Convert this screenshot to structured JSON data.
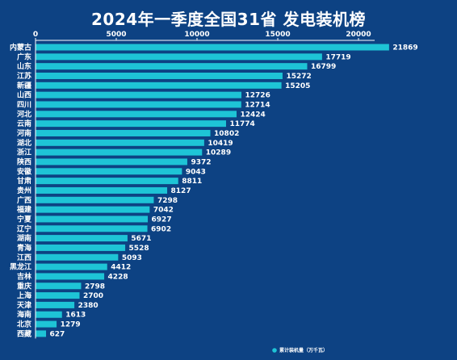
{
  "title": "2024年一季度全国31省 发电装机榜",
  "colors": {
    "background": "#0d4283",
    "bar": "#1ec4d6",
    "text": "#ffffff"
  },
  "legend": {
    "label": "累计装机量（万千瓦）",
    "position": "bottom-right"
  },
  "chart_data": {
    "type": "bar",
    "orientation": "horizontal",
    "title": "2024年一季度全国31省 发电装机榜",
    "xlabel": "",
    "ylabel": "",
    "xlim": [
      0,
      22000
    ],
    "xticks": [
      0,
      5000,
      10000,
      15000,
      20000
    ],
    "xtick_labels": [
      "0",
      "5000",
      "10000",
      "15000",
      "20000"
    ],
    "grid": false,
    "categories": [
      "内蒙古",
      "广东",
      "山东",
      "江苏",
      "新疆",
      "山西",
      "四川",
      "河北",
      "云南",
      "河南",
      "湖北",
      "浙江",
      "陕西",
      "安徽",
      "甘肃",
      "贵州",
      "广西",
      "福建",
      "宁夏",
      "辽宁",
      "湖南",
      "青海",
      "江西",
      "黑龙江",
      "吉林",
      "重庆",
      "上海",
      "天津",
      "海南",
      "北京",
      "西藏"
    ],
    "series": [
      {
        "name": "累计装机量（万千瓦）",
        "values": [
          21869,
          17719,
          16799,
          15272,
          15205,
          12726,
          12714,
          12424,
          11774,
          10802,
          10419,
          10289,
          9372,
          9043,
          8811,
          8127,
          7298,
          7042,
          6927,
          6902,
          5671,
          5528,
          5093,
          4412,
          4228,
          2798,
          2700,
          2380,
          1613,
          1279,
          627
        ],
        "labels": [
          "21869",
          "17719",
          "16799",
          "15272",
          "15205",
          "12726",
          "12714",
          "12424",
          "11774",
          "10802",
          "10419",
          "10289",
          "9372",
          "9043",
          "8811",
          "8127",
          "7298",
          "7042",
          "6927",
          "6902",
          "5671",
          "5528",
          "5093",
          "4412",
          "4228",
          "2798",
          "2700",
          "2380",
          "1613",
          "1279",
          "627"
        ]
      }
    ]
  }
}
